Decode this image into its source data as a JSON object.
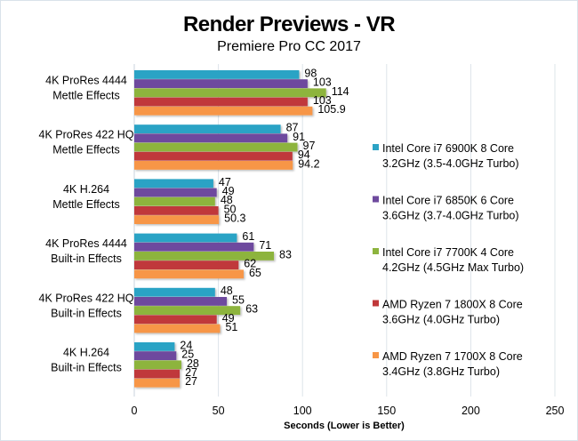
{
  "chart_data": {
    "type": "bar",
    "orientation": "horizontal",
    "title": "Render Previews - VR",
    "subtitle": "Premiere Pro CC 2017",
    "xlabel": "Seconds  (Lower is Better)",
    "ylabel": "",
    "xlim": [
      0,
      250
    ],
    "xticks": [
      "0",
      "50",
      "100",
      "150",
      "200",
      "250"
    ],
    "xtick_values": [
      0,
      50,
      100,
      150,
      200,
      250
    ],
    "grid": true,
    "legend_position": "right",
    "categories": [
      [
        "4K ProRes 4444",
        "Mettle Effects"
      ],
      [
        "4K ProRes 422 HQ",
        "Mettle Effects"
      ],
      [
        "4K H.264",
        "Mettle Effects"
      ],
      [
        "4K ProRes 4444",
        "Built-in Effects"
      ],
      [
        "4K ProRes 422 HQ",
        "Built-in Effects"
      ],
      [
        "4K H.264",
        "Built-in Effects"
      ]
    ],
    "series": [
      {
        "name": [
          "Intel Core i7 6900K 8 Core",
          "3.2GHz (3.5-4.0GHz Turbo)"
        ],
        "color": "#2CA3C5",
        "values": [
          98,
          87,
          47,
          61,
          48,
          24
        ],
        "labels": [
          "98",
          "87",
          "47",
          "61",
          "48",
          "24"
        ]
      },
      {
        "name": [
          "Intel Core i7 6850K 6 Core",
          "3.6GHz (3.7-4.0GHz Turbo)"
        ],
        "color": "#6E4A9E",
        "values": [
          103,
          91,
          49,
          71,
          55,
          25
        ],
        "labels": [
          "103",
          "91",
          "49",
          "71",
          "55",
          "25"
        ]
      },
      {
        "name": [
          "Intel Core i7 7700K 4 Core",
          "4.2GHz (4.5GHz Max Turbo)"
        ],
        "color": "#8DB43E",
        "values": [
          114,
          97,
          48,
          83,
          63,
          28
        ],
        "labels": [
          "114",
          "97",
          "48",
          "83",
          "63",
          "28"
        ]
      },
      {
        "name": [
          "AMD Ryzen 7 1800X 8 Core",
          "3.6GHz (4.0GHz Turbo)"
        ],
        "color": "#C0383A",
        "values": [
          103,
          94,
          50,
          62,
          49,
          27
        ],
        "labels": [
          "103",
          "94",
          "50",
          "62",
          "49",
          "27"
        ]
      },
      {
        "name": [
          "AMD Ryzen 7 1700X 8 Core",
          "3.4GHz (3.8GHz Turbo)"
        ],
        "color": "#F79646",
        "values": [
          105.9,
          94.2,
          50.3,
          65,
          51,
          27
        ],
        "labels": [
          "105.9",
          "94.2",
          "50.3",
          "65",
          "51",
          "27"
        ]
      }
    ]
  }
}
